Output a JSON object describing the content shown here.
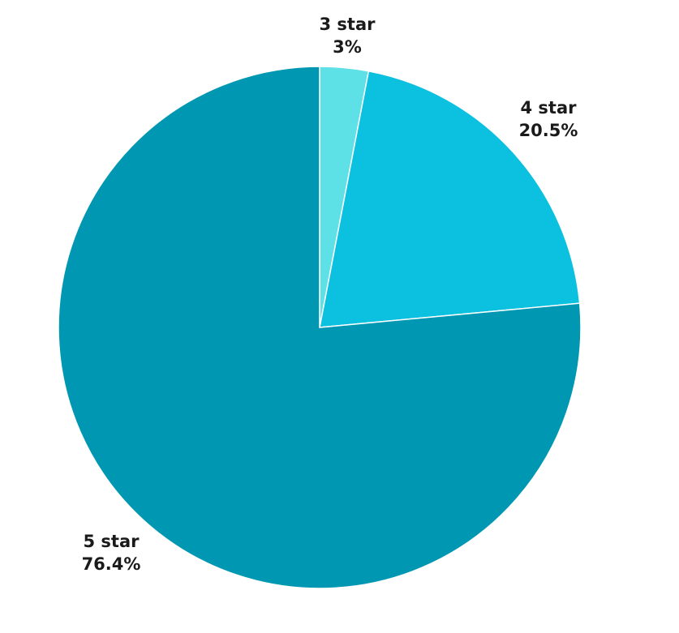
{
  "chart_data": {
    "type": "pie",
    "title": "",
    "slices": [
      {
        "label": "3 star",
        "value": 3,
        "value_label": "3%",
        "color": "#5de0e6"
      },
      {
        "label": "4 star",
        "value": 20.5,
        "value_label": "20.5%",
        "color": "#0cc0df"
      },
      {
        "label": "5 star",
        "value": 76.4,
        "value_label": "76.4%",
        "color": "#0097b2"
      }
    ],
    "start_angle": "12 o'clock",
    "direction": "clockwise",
    "legend": "none",
    "labels": "outside"
  }
}
